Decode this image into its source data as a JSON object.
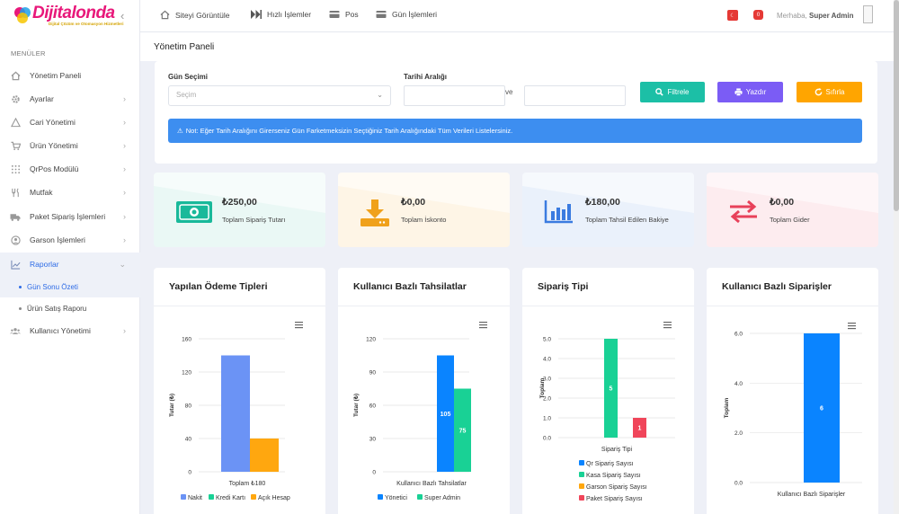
{
  "brand": {
    "name": "Dijitalonda",
    "tagline": "Dijital Çözüm ve Otomasyon Hizmetleri"
  },
  "sidebar": {
    "menu_title": "MENÜLER",
    "items": [
      {
        "label": "Yönetim Paneli",
        "icon": "home-icon"
      },
      {
        "label": "Ayarlar",
        "icon": "gear-icon"
      },
      {
        "label": "Cari Yönetimi",
        "icon": "warning-icon"
      },
      {
        "label": "Ürün Yönetimi",
        "icon": "cart-icon"
      },
      {
        "label": "QrPos Modülü",
        "icon": "grid-icon"
      },
      {
        "label": "Mutfak",
        "icon": "utensils-icon"
      },
      {
        "label": "Paket Sipariş İşlemleri",
        "icon": "truck-icon"
      },
      {
        "label": "Garson İşlemleri",
        "icon": "user-circle-icon"
      },
      {
        "label": "Raporlar",
        "icon": "chart-icon"
      },
      {
        "label": "Kullanıcı Yönetimi",
        "icon": "users-icon"
      }
    ],
    "sub_items": [
      {
        "label": "Gün Sonu Özeti"
      },
      {
        "label": "Ürün Satış Raporu"
      }
    ]
  },
  "topbar": {
    "links": [
      {
        "label": "Siteyi Görüntüle",
        "icon": "home-icon"
      },
      {
        "label": "Hızlı İşlemler",
        "icon": "fast-forward-icon"
      },
      {
        "label": "Pos",
        "icon": "credit-card-icon"
      },
      {
        "label": "Gün İşlemleri",
        "icon": "credit-card-icon"
      }
    ],
    "greeting": "Merhaba,",
    "user": "Super Admin",
    "notif_badge": "0",
    "flag_color": "#e53935"
  },
  "page": {
    "title": "Yönetim Paneli"
  },
  "filter": {
    "day_label": "Gün Seçimi",
    "day_placeholder": "Seçim",
    "range_label": "Tarihi Aralığı",
    "and_label": "ve",
    "filter_button": "Filtrele",
    "print_button": "Yazdır",
    "reset_button": "Sıfırla",
    "alert": "Not: Eğer Tarih Aralığını Girerseniz Gün Farketmeksizin Seçtiğiniz Tarih Aralığındaki Tüm Verileri Listelersiniz."
  },
  "stats": [
    {
      "amount": "₺250,00",
      "label": "Toplam Sipariş Tutarı",
      "color": "#19b99a"
    },
    {
      "amount": "₺0,00",
      "label": "Toplam İskonto",
      "color": "#f0a11b"
    },
    {
      "amount": "₺180,00",
      "label": "Toplam Tahsil Edilen Bakiye",
      "color": "#3a7be0"
    },
    {
      "amount": "₺0,00",
      "label": "Toplam Gider",
      "color": "#e8415a"
    }
  ],
  "cards": [
    {
      "title": "Yapılan Ödeme Tipleri"
    },
    {
      "title": "Kullanıcı Bazlı Tahsilatlar"
    },
    {
      "title": "Sipariş Tipi"
    },
    {
      "title": "Kullanıcı Bazlı Siparişler"
    }
  ],
  "chart_data": [
    {
      "type": "bar",
      "title": "Yapılan Ödeme Tipleri",
      "ylabel": "Tutar (₺)",
      "xlabel": "Toplam ₺180",
      "ylim": [
        0,
        160
      ],
      "yticks": [
        "0",
        "40",
        "80",
        "120",
        "160"
      ],
      "series": [
        {
          "name": "Nakit",
          "values": [
            140
          ],
          "color": "#6b93f5"
        },
        {
          "name": "Kredi Kartı",
          "values": [
            0
          ],
          "color": "#19d195"
        },
        {
          "name": "Açık Hesap",
          "values": [
            40
          ],
          "color": "#ffa70f"
        }
      ]
    },
    {
      "type": "bar",
      "title": "Kullanıcı Bazlı Tahsilatlar",
      "ylabel": "Tutar (₺)",
      "xlabel": "Kullanıcı Bazlı Tahsilatlar",
      "ylim": [
        0,
        120
      ],
      "yticks": [
        "0",
        "30",
        "60",
        "90",
        "120"
      ],
      "series": [
        {
          "name": "Yönetici",
          "values": [
            105
          ],
          "color": "#0a84ff"
        },
        {
          "name": "Super Admin",
          "values": [
            75
          ],
          "color": "#19d195"
        }
      ]
    },
    {
      "type": "bar",
      "title": "Sipariş Tipi",
      "ylabel": "Toplam",
      "xlabel": "Sipariş Tipi",
      "ylim": [
        0,
        5
      ],
      "yticks": [
        "0.0",
        "1.0",
        "2.0",
        "3.0",
        "4.0",
        "5.0"
      ],
      "series": [
        {
          "name": "Qr Sipariş Sayısı",
          "values": [
            0
          ],
          "color": "#0a84ff"
        },
        {
          "name": "Kasa Sipariş Sayısı",
          "values": [
            5
          ],
          "color": "#19d195"
        },
        {
          "name": "Garson Sipariş Sayısı",
          "values": [
            0
          ],
          "color": "#ffa70f"
        },
        {
          "name": "Paket Sipariş Sayısı",
          "values": [
            1
          ],
          "color": "#f0455a"
        }
      ]
    },
    {
      "type": "bar",
      "title": "Kullanıcı Bazlı Siparişler",
      "ylabel": "Toplam",
      "xlabel": "Kullanıcı Bazlı Siparişler",
      "ylim": [
        0,
        6
      ],
      "yticks": [
        "0.0",
        "2.0",
        "4.0",
        "6.0"
      ],
      "series": [
        {
          "name": "",
          "values": [
            6
          ],
          "color": "#0a84ff"
        }
      ]
    }
  ]
}
